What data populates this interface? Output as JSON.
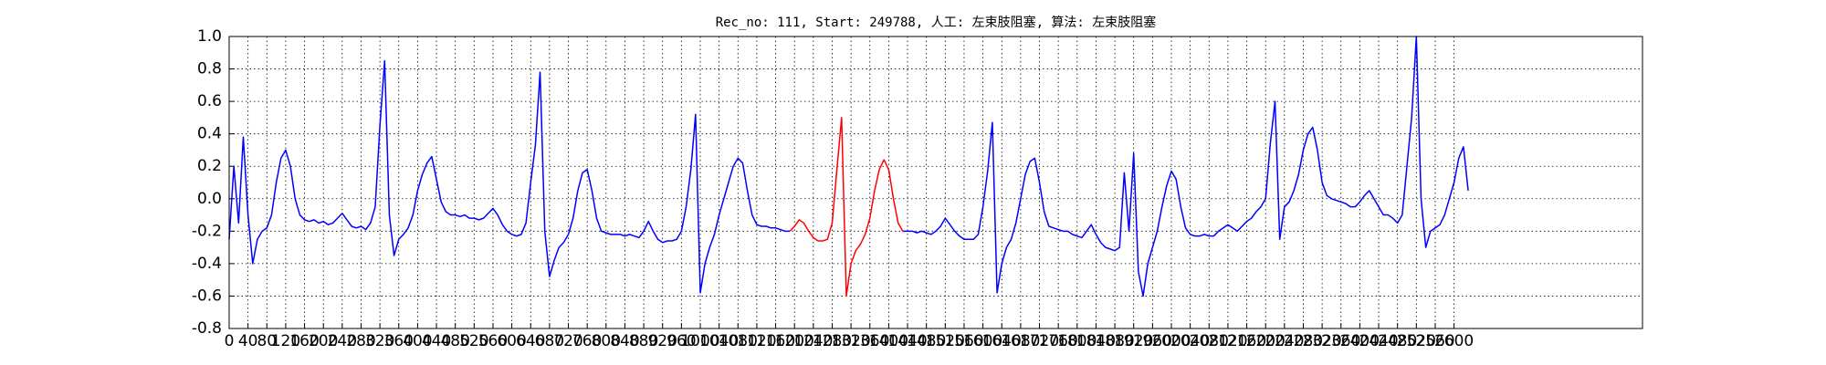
{
  "chart_data": {
    "type": "line",
    "title": "Rec_no: 111, Start: 249788, 人工: 左束肢阻塞, 算法: 左束肢阻塞",
    "xlim": [
      0,
      3000
    ],
    "xticks": [
      0,
      40,
      80,
      120,
      160,
      200,
      240,
      280,
      320,
      360,
      400,
      440,
      480,
      520,
      560,
      600,
      640,
      680,
      720,
      760,
      800,
      840,
      880,
      920,
      960,
      1000,
      1040,
      1080,
      1120,
      1160,
      1200,
      1240,
      1280,
      1320,
      1360,
      1400,
      1440,
      1480,
      1520,
      1560,
      1600,
      1640,
      1680,
      1720,
      1760,
      1800,
      1840,
      1880,
      1920,
      1960,
      2000,
      2040,
      2080,
      2120,
      2160,
      2200,
      2240,
      2280,
      2320,
      2360,
      2400,
      2440,
      2480,
      2520,
      2560,
      2600
    ],
    "ylim": [
      -0.8,
      1
    ],
    "yticks": [
      -0.8,
      -0.6,
      -0.4,
      -0.2,
      {
        "value": 0,
        "label": "0.0"
      },
      0.2,
      0.4,
      0.6,
      0.8,
      {
        "value": 1,
        "label": "1.0"
      }
    ],
    "grid": true,
    "series": [
      {
        "color": "#0000ff",
        "x": [
          0,
          10,
          20,
          30,
          40,
          50,
          60,
          70,
          80,
          90,
          100,
          110,
          120,
          130,
          140,
          150,
          160,
          170,
          180,
          190,
          200,
          210,
          220,
          230,
          240,
          250,
          260,
          270,
          280,
          290,
          300,
          310,
          320,
          330,
          340,
          350,
          360,
          370,
          380,
          390,
          400,
          410,
          420,
          430,
          440,
          450,
          460,
          470,
          480,
          490,
          500,
          510,
          520,
          530,
          540,
          550,
          560,
          570,
          580,
          590,
          600,
          610,
          620,
          630,
          640,
          650,
          660,
          670,
          680,
          690,
          700,
          710,
          720,
          730,
          740,
          750,
          760,
          770,
          780,
          790,
          800,
          810,
          820,
          830,
          840,
          850,
          860,
          870,
          880,
          890,
          900,
          910,
          920,
          930,
          940,
          950,
          960,
          970,
          980,
          990,
          1000,
          1010,
          1020,
          1030,
          1040,
          1050,
          1060,
          1070,
          1080,
          1090,
          1100,
          1110,
          1120,
          1130,
          1140,
          1150,
          1160,
          1170,
          1180,
          1190,
          1200,
          1210,
          1220,
          1230,
          1240,
          1250,
          1260,
          1270,
          1280,
          1290,
          1300,
          1310,
          1320,
          1330,
          1340,
          1350,
          1360,
          1370,
          1380,
          1390,
          1400,
          1410,
          1420,
          1430,
          1440,
          1450,
          1460,
          1470,
          1480,
          1490,
          1500,
          1510,
          1520,
          1530,
          1540,
          1550,
          1560,
          1570,
          1580,
          1590,
          1600,
          1610,
          1620,
          1630,
          1640,
          1650,
          1660,
          1670,
          1680,
          1690,
          1700,
          1710,
          1720,
          1730,
          1740,
          1750,
          1760,
          1770,
          1780,
          1790,
          1800,
          1810,
          1820,
          1830,
          1840,
          1850,
          1860,
          1870,
          1880,
          1890,
          1900,
          1910,
          1920,
          1930,
          1940,
          1950,
          1960,
          1970,
          1980,
          1990,
          2000,
          2010,
          2020,
          2030,
          2040,
          2050,
          2060,
          2070,
          2080,
          2090,
          2100,
          2110,
          2120,
          2130,
          2140,
          2150,
          2160,
          2170,
          2180,
          2190,
          2200,
          2210,
          2220,
          2230,
          2240,
          2250,
          2260,
          2270,
          2280,
          2290,
          2300,
          2310,
          2320,
          2330,
          2340,
          2350,
          2360,
          2370,
          2380,
          2390,
          2400,
          2410,
          2420,
          2430,
          2440,
          2450,
          2460,
          2470,
          2480,
          2490,
          2500,
          2510,
          2520,
          2530,
          2540,
          2550,
          2560,
          2570,
          2580,
          2590,
          2600,
          2610,
          2620,
          2630
        ],
        "values": [
          -0.25,
          0.2,
          -0.15,
          0.38,
          -0.1,
          -0.4,
          -0.25,
          -0.2,
          -0.18,
          -0.1,
          0.1,
          0.25,
          0.3,
          0.2,
          0.0,
          -0.1,
          -0.13,
          -0.14,
          -0.13,
          -0.15,
          -0.14,
          -0.16,
          -0.15,
          -0.12,
          -0.09,
          -0.13,
          -0.17,
          -0.18,
          -0.17,
          -0.19,
          -0.15,
          -0.05,
          0.45,
          0.85,
          -0.1,
          -0.35,
          -0.25,
          -0.22,
          -0.18,
          -0.1,
          0.05,
          0.15,
          0.22,
          0.26,
          0.12,
          -0.02,
          -0.08,
          -0.1,
          -0.1,
          -0.11,
          -0.1,
          -0.12,
          -0.12,
          -0.13,
          -0.12,
          -0.09,
          -0.06,
          -0.1,
          -0.16,
          -0.2,
          -0.22,
          -0.23,
          -0.22,
          -0.15,
          0.1,
          0.33,
          0.78,
          -0.2,
          -0.48,
          -0.38,
          -0.3,
          -0.27,
          -0.22,
          -0.12,
          0.05,
          0.16,
          0.18,
          0.05,
          -0.12,
          -0.2,
          -0.21,
          -0.22,
          -0.22,
          -0.22,
          -0.23,
          -0.22,
          -0.23,
          -0.24,
          -0.2,
          -0.14,
          -0.2,
          -0.25,
          -0.27,
          -0.26,
          -0.26,
          -0.25,
          -0.2,
          -0.05,
          0.18,
          0.52,
          -0.58,
          -0.4,
          -0.3,
          -0.22,
          -0.1,
          0.0,
          0.1,
          0.2,
          0.25,
          0.22,
          0.05,
          -0.1,
          -0.16,
          -0.17,
          -0.17,
          -0.18,
          -0.18,
          -0.19,
          -0.2,
          -0.2,
          null,
          null,
          null,
          null,
          null,
          null,
          null,
          null,
          null,
          null,
          null,
          null,
          null,
          null,
          null,
          null,
          null,
          null,
          null,
          null,
          null,
          null,
          null,
          -0.2,
          -0.2,
          -0.2,
          -0.21,
          -0.2,
          -0.21,
          -0.22,
          -0.2,
          -0.17,
          -0.12,
          -0.16,
          -0.2,
          -0.23,
          -0.25,
          -0.25,
          -0.25,
          -0.22,
          -0.05,
          0.17,
          0.47,
          -0.58,
          -0.4,
          -0.3,
          -0.25,
          -0.15,
          0.0,
          0.15,
          0.23,
          0.25,
          0.1,
          -0.08,
          -0.17,
          -0.18,
          -0.19,
          -0.2,
          -0.2,
          -0.22,
          -0.23,
          -0.24,
          -0.2,
          -0.16,
          -0.22,
          -0.27,
          -0.3,
          -0.31,
          -0.32,
          -0.3,
          0.16,
          -0.2,
          0.28,
          -0.45,
          -0.6,
          -0.4,
          -0.3,
          -0.2,
          -0.05,
          0.08,
          0.17,
          0.12,
          -0.05,
          -0.18,
          -0.22,
          -0.23,
          -0.23,
          -0.22,
          -0.23,
          -0.23,
          -0.2,
          -0.18,
          -0.16,
          -0.18,
          -0.2,
          -0.17,
          -0.14,
          -0.12,
          -0.08,
          -0.05,
          0.0,
          0.34,
          0.6,
          -0.25,
          -0.05,
          -0.02,
          0.05,
          0.15,
          0.3,
          0.4,
          0.44,
          0.3,
          0.1,
          0.02,
          0.0,
          -0.01,
          -0.02,
          -0.03,
          -0.05,
          -0.05,
          -0.02,
          0.02,
          0.05,
          0.0,
          -0.05,
          -0.1,
          -0.1,
          -0.12,
          -0.15,
          -0.1,
          0.2,
          0.5,
          1.0,
          0.0,
          -0.3,
          -0.2,
          -0.18,
          -0.16,
          -0.1,
          0.0,
          0.1,
          0.25,
          0.32,
          0.05
        ]
      },
      {
        "color": "#ff0000",
        "x": [
          1190,
          1200,
          1210,
          1220,
          1230,
          1240,
          1250,
          1260,
          1270,
          1280,
          1290,
          1300,
          1310,
          1320,
          1330,
          1340,
          1350,
          1360,
          1370,
          1380,
          1390,
          1400,
          1410,
          1420,
          1430
        ],
        "values": [
          -0.2,
          -0.17,
          -0.13,
          -0.15,
          -0.2,
          -0.24,
          -0.26,
          -0.26,
          -0.25,
          -0.15,
          0.18,
          0.5,
          -0.6,
          -0.4,
          -0.32,
          -0.28,
          -0.22,
          -0.12,
          0.05,
          0.18,
          0.24,
          0.18,
          0.0,
          -0.15,
          -0.2
        ]
      }
    ]
  }
}
